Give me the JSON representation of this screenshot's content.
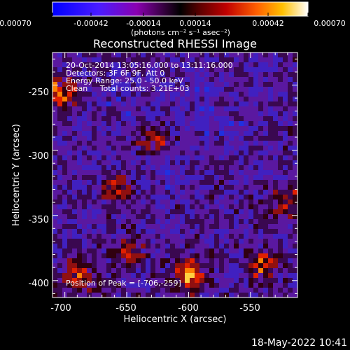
{
  "colorbar": {
    "tick_labels": [
      "-0.00070",
      "-0.00042",
      "-0.00014",
      "0.00014",
      "0.00042",
      "0.00070"
    ],
    "units": "(photons cm⁻² s⁻¹ asec⁻²)",
    "range": [
      -0.0007,
      0.0007
    ],
    "colormap": [
      "#0000ff",
      "#5a00ff",
      "#9000c0",
      "#3a0040",
      "#000000",
      "#600000",
      "#c00000",
      "#ff5000",
      "#ffb000",
      "#ffff80",
      "#ffffff"
    ]
  },
  "plot": {
    "title": "Reconstructed RHESSI Image",
    "info_lines": [
      "20-Oct-2014 13:05:16.000 to 13:11:16.000",
      "Detectors: 3F 6F 9F, Att 0",
      "Energy Range: 25.0 - 50.0 keV",
      "Clean     Total counts: 3.21E+03"
    ],
    "peak_label": "Position of Peak = [-706,-259]",
    "xlabel": "Heliocentric X (arcsec)",
    "ylabel": "Heliocentric Y (arcsec)",
    "x_ticks": [
      -700,
      -650,
      -600,
      -550
    ],
    "y_ticks": [
      -250,
      -300,
      -350,
      -400
    ],
    "x_range": [
      -710,
      -512
    ],
    "y_range": [
      -413,
      -225
    ]
  },
  "footer": {
    "timestamp": "18-May-2022 10:41"
  }
}
